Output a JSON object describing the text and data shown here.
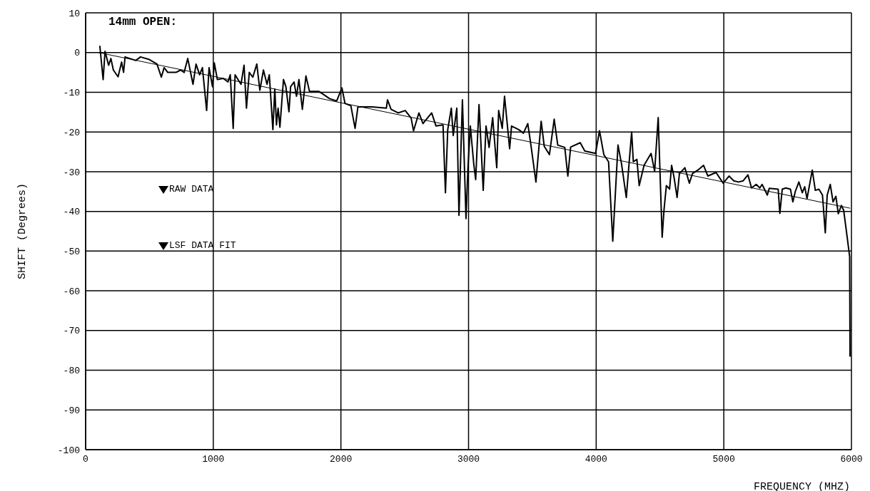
{
  "chart_data": {
    "type": "line",
    "title": "14mm OPEN:",
    "xlabel": "FREQUENCY (MHZ)",
    "ylabel": "SHIFT (Degrees)",
    "xlim": [
      0,
      6000
    ],
    "xticks": [
      0,
      1000,
      2000,
      3000,
      4000,
      5000,
      6000
    ],
    "ylim": [
      -100,
      10
    ],
    "yticks": [
      10,
      0,
      -10,
      -20,
      -30,
      -40,
      -50,
      -60,
      -70,
      -80,
      -90,
      -100
    ],
    "grid": true,
    "legend": "left",
    "marker": "none",
    "line_style": "solid",
    "series": [
      {
        "name": "RAW DATA",
        "color": "#000000",
        "x": [
          111,
          137,
          152,
          180,
          198,
          217,
          254,
          282,
          297,
          309,
          393,
          430,
          494,
          559,
          593,
          615,
          643,
          708,
          744,
          772,
          800,
          841,
          865,
          893,
          915,
          948,
          967,
          994,
          1008,
          1032,
          1078,
          1115,
          1133,
          1156,
          1171,
          1217,
          1241,
          1260,
          1282,
          1310,
          1341,
          1365,
          1393,
          1421,
          1439,
          1467,
          1482,
          1495,
          1508,
          1522,
          1550,
          1569,
          1593,
          1606,
          1633,
          1652,
          1671,
          1698,
          1726,
          1754,
          1828,
          1856,
          1911,
          1967,
          2008,
          2032,
          2078,
          2111,
          2133,
          2171,
          2245,
          2356,
          2365,
          2393,
          2448,
          2504,
          2550,
          2569,
          2611,
          2643,
          2711,
          2745,
          2800,
          2819,
          2837,
          2865,
          2880,
          2908,
          2925,
          2952,
          2980,
          2995,
          3014,
          3041,
          3056,
          3082,
          3115,
          3137,
          3161,
          3189,
          3221,
          3236,
          3264,
          3282,
          3322,
          3337,
          3393,
          3430,
          3464,
          3486,
          3528,
          3569,
          3593,
          3634,
          3671,
          3699,
          3754,
          3778,
          3800,
          3875,
          3911,
          3995,
          4026,
          4060,
          4097,
          4130,
          4171,
          4199,
          4236,
          4278,
          4291,
          4319,
          4337,
          4375,
          4430,
          4458,
          4486,
          4517,
          4532,
          4550,
          4575,
          4591,
          4610,
          4634,
          4652,
          4695,
          4730,
          4754,
          4797,
          4841,
          4875,
          4939,
          4995,
          5041,
          5078,
          5115,
          5152,
          5189,
          5217,
          5254,
          5282,
          5300,
          5341,
          5356,
          5426,
          5439,
          5458,
          5486,
          5522,
          5541,
          5560,
          5588,
          5615,
          5634,
          5652,
          5693,
          5717,
          5745,
          5773,
          5795,
          5810,
          5834,
          5856,
          5878,
          5897,
          5921,
          5939,
          5967,
          5986,
          5989
        ],
        "values": [
          1.7,
          -6.8,
          0.3,
          -3.2,
          -1.5,
          -4.4,
          -6.1,
          -2.4,
          -5.0,
          -1.1,
          -2.0,
          -1.1,
          -1.7,
          -2.9,
          -6.2,
          -3.8,
          -5.0,
          -5.0,
          -4.4,
          -5.0,
          -1.5,
          -8.0,
          -2.9,
          -5.6,
          -3.8,
          -14.6,
          -3.8,
          -8.6,
          -2.6,
          -6.8,
          -6.5,
          -7.4,
          -5.6,
          -19.1,
          -5.6,
          -8.0,
          -3.2,
          -14.0,
          -5.0,
          -6.2,
          -2.9,
          -9.5,
          -4.4,
          -8.0,
          -5.6,
          -19.4,
          -9.2,
          -18.2,
          -14.0,
          -18.8,
          -6.8,
          -8.6,
          -14.9,
          -8.6,
          -7.4,
          -11.0,
          -6.8,
          -14.3,
          -5.9,
          -9.8,
          -9.8,
          -10.4,
          -11.6,
          -12.2,
          -8.9,
          -12.8,
          -13.4,
          -19.1,
          -13.7,
          -13.7,
          -13.7,
          -14.0,
          -11.9,
          -14.3,
          -15.2,
          -14.6,
          -16.5,
          -19.7,
          -15.2,
          -17.9,
          -15.2,
          -18.5,
          -18.2,
          -35.3,
          -19.4,
          -14.0,
          -20.9,
          -14.0,
          -41.0,
          -11.9,
          -41.8,
          -29.3,
          -18.5,
          -28.1,
          -32.0,
          -13.1,
          -34.7,
          -18.5,
          -23.9,
          -16.4,
          -29.0,
          -14.6,
          -19.1,
          -11.0,
          -24.2,
          -18.5,
          -19.4,
          -20.3,
          -17.9,
          -22.7,
          -32.6,
          -17.3,
          -23.6,
          -25.7,
          -16.8,
          -23.3,
          -23.9,
          -31.1,
          -23.8,
          -22.7,
          -24.8,
          -25.4,
          -19.7,
          -25.7,
          -27.5,
          -47.5,
          -23.3,
          -28.1,
          -36.5,
          -20.0,
          -27.5,
          -26.9,
          -33.5,
          -28.4,
          -25.4,
          -29.9,
          -16.4,
          -46.5,
          -39.4,
          -33.5,
          -34.4,
          -28.4,
          -31.4,
          -36.5,
          -30.5,
          -29.0,
          -32.9,
          -30.5,
          -29.6,
          -28.4,
          -31.1,
          -30.2,
          -32.9,
          -31.1,
          -32.3,
          -32.6,
          -32.3,
          -30.8,
          -34.1,
          -33.2,
          -34.1,
          -33.2,
          -35.9,
          -34.2,
          -34.4,
          -40.5,
          -34.4,
          -34.1,
          -34.4,
          -37.6,
          -35.0,
          -32.6,
          -35.3,
          -33.8,
          -36.8,
          -29.6,
          -34.7,
          -34.4,
          -35.9,
          -45.4,
          -35.9,
          -33.2,
          -37.6,
          -36.2,
          -40.6,
          -38.5,
          -39.7,
          -46.6,
          -51.4,
          -76.6
        ]
      },
      {
        "name": "LSF DATA FIT",
        "color": "#000000",
        "x": [
          100,
          5990
        ],
        "values": [
          0,
          -39.2
        ]
      }
    ]
  }
}
